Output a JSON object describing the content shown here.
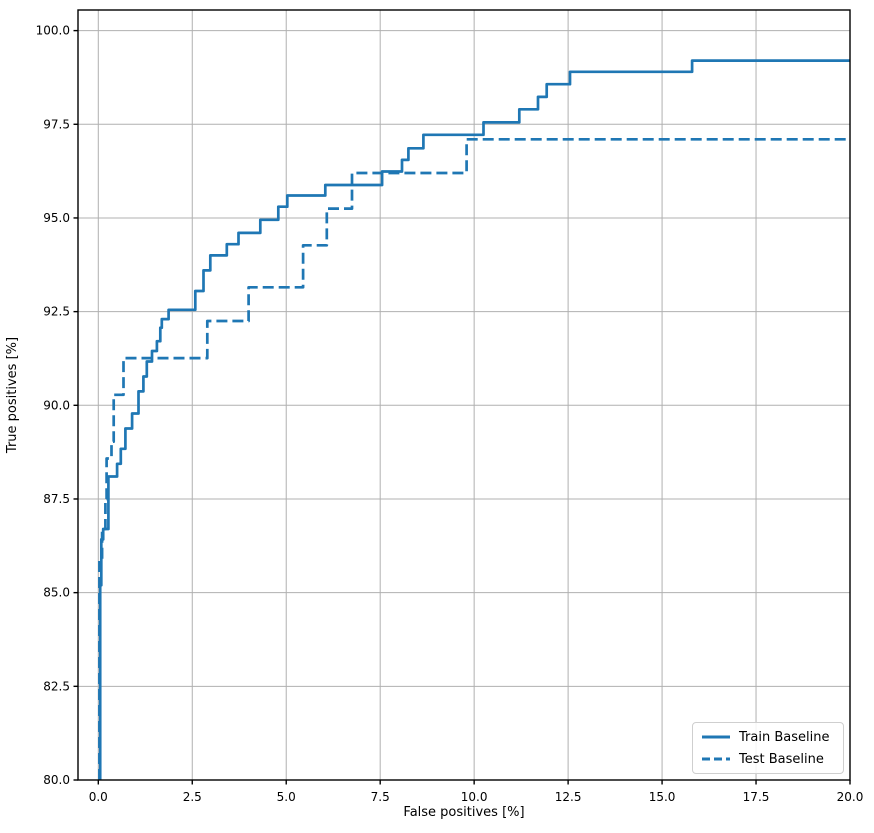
{
  "chart_data": {
    "type": "line",
    "subtype": "roc-step-curves",
    "title": "",
    "xlabel": "False positives [%]",
    "ylabel": "True positives [%]",
    "xlim": [
      -0.54,
      20
    ],
    "ylim": [
      80,
      100.55
    ],
    "grid": true,
    "grid_color": "#b0b0b0",
    "spine_color": "#000000",
    "accent_color": "#1f77b4",
    "legend_position": "lower right",
    "xticks": {
      "values": [
        0,
        2.5,
        5,
        7.5,
        10,
        12.5,
        15,
        17.5,
        20
      ],
      "labels": [
        "0.0",
        "2.5",
        "5.0",
        "7.5",
        "10.0",
        "12.5",
        "15.0",
        "17.5",
        "20.0"
      ]
    },
    "yticks": {
      "values": [
        80,
        82.5,
        85,
        87.5,
        90,
        92.5,
        95,
        97.5,
        100
      ],
      "labels": [
        "80.0",
        "82.5",
        "85.0",
        "87.5",
        "90.0",
        "92.5",
        "95.0",
        "97.5",
        "100.0"
      ]
    },
    "series": [
      {
        "name": "Train Baseline",
        "line_style": "solid",
        "color": "#1f77b4",
        "points": [
          [
            0.05,
            80
          ],
          [
            0.05,
            85.2
          ],
          [
            0.08,
            85.2
          ],
          [
            0.08,
            86.42
          ],
          [
            0.13,
            86.42
          ],
          [
            0.13,
            86.7
          ],
          [
            0.27,
            86.7
          ],
          [
            0.27,
            88.1
          ],
          [
            0.5,
            88.1
          ],
          [
            0.5,
            88.44
          ],
          [
            0.6,
            88.44
          ],
          [
            0.6,
            88.84
          ],
          [
            0.72,
            88.84
          ],
          [
            0.72,
            89.38
          ],
          [
            0.9,
            89.38
          ],
          [
            0.9,
            89.78
          ],
          [
            1.07,
            89.78
          ],
          [
            1.07,
            90.37
          ],
          [
            1.2,
            90.37
          ],
          [
            1.2,
            90.77
          ],
          [
            1.29,
            90.77
          ],
          [
            1.29,
            91.17
          ],
          [
            1.43,
            91.17
          ],
          [
            1.43,
            91.45
          ],
          [
            1.56,
            91.45
          ],
          [
            1.56,
            91.71
          ],
          [
            1.65,
            91.71
          ],
          [
            1.65,
            92.07
          ],
          [
            1.69,
            92.07
          ],
          [
            1.69,
            92.3
          ],
          [
            1.87,
            92.3
          ],
          [
            1.87,
            92.55
          ],
          [
            2.58,
            92.55
          ],
          [
            2.58,
            93.05
          ],
          [
            2.8,
            93.05
          ],
          [
            2.8,
            93.6
          ],
          [
            2.98,
            93.6
          ],
          [
            2.98,
            94
          ],
          [
            3.42,
            94
          ],
          [
            3.42,
            94.3
          ],
          [
            3.73,
            94.3
          ],
          [
            3.73,
            94.6
          ],
          [
            4.31,
            94.6
          ],
          [
            4.31,
            94.95
          ],
          [
            4.79,
            94.95
          ],
          [
            4.79,
            95.3
          ],
          [
            5.03,
            95.3
          ],
          [
            5.03,
            95.6
          ],
          [
            6.04,
            95.6
          ],
          [
            6.04,
            95.88
          ],
          [
            7.55,
            95.88
          ],
          [
            7.55,
            96.24
          ],
          [
            8.08,
            96.24
          ],
          [
            8.08,
            96.55
          ],
          [
            8.25,
            96.55
          ],
          [
            8.25,
            96.86
          ],
          [
            8.65,
            96.86
          ],
          [
            8.65,
            97.22
          ],
          [
            10.25,
            97.22
          ],
          [
            10.25,
            97.55
          ],
          [
            11.2,
            97.55
          ],
          [
            11.2,
            97.9
          ],
          [
            11.7,
            97.9
          ],
          [
            11.7,
            98.23
          ],
          [
            11.93,
            98.23
          ],
          [
            11.93,
            98.57
          ],
          [
            12.55,
            98.57
          ],
          [
            12.55,
            98.9
          ],
          [
            15.8,
            98.9
          ],
          [
            15.8,
            99.2
          ],
          [
            20,
            99.2
          ]
        ]
      },
      {
        "name": "Test Baseline",
        "line_style": "dashed",
        "color": "#1f77b4",
        "points": [
          [
            0.03,
            80
          ],
          [
            0.03,
            85.89
          ],
          [
            0.1,
            85.89
          ],
          [
            0.1,
            86.7
          ],
          [
            0.19,
            86.7
          ],
          [
            0.19,
            87.5
          ],
          [
            0.22,
            87.5
          ],
          [
            0.22,
            88.58
          ],
          [
            0.35,
            88.58
          ],
          [
            0.35,
            89.03
          ],
          [
            0.41,
            89.03
          ],
          [
            0.41,
            90.28
          ],
          [
            0.67,
            90.28
          ],
          [
            0.67,
            91.26
          ],
          [
            2.9,
            91.26
          ],
          [
            2.9,
            92.25
          ],
          [
            4,
            92.25
          ],
          [
            4,
            93.15
          ],
          [
            5.45,
            93.15
          ],
          [
            5.45,
            94.27
          ],
          [
            6.08,
            94.27
          ],
          [
            6.08,
            95.25
          ],
          [
            6.75,
            95.25
          ],
          [
            6.75,
            96.2
          ],
          [
            9.8,
            96.2
          ],
          [
            9.8,
            97.1
          ],
          [
            20,
            97.1
          ]
        ]
      }
    ]
  }
}
